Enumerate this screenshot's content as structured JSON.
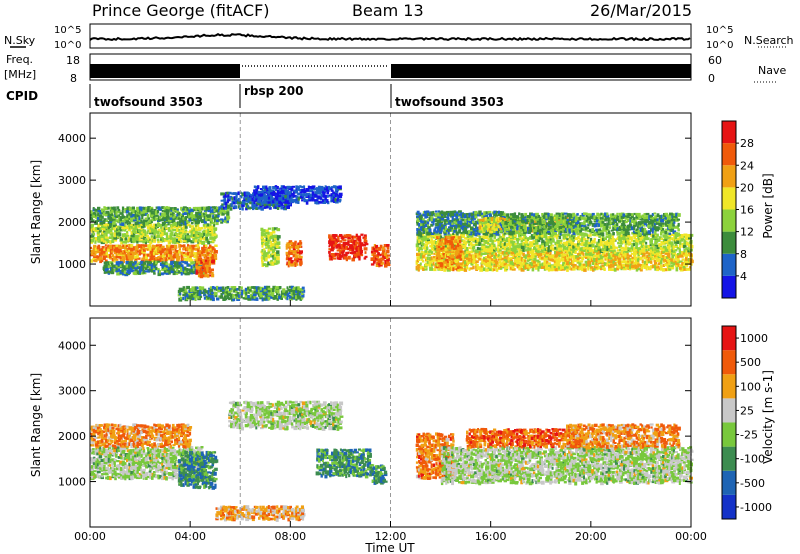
{
  "header": {
    "station": "Prince George (fitACF)",
    "beam": "Beam 13",
    "date": "26/Mar/2015"
  },
  "strip1": {
    "left_label": "N.Sky",
    "right_label": "N.Search",
    "left_ticks": [
      "10^5",
      "10^0"
    ],
    "right_ticks": [
      "10^5",
      "10^0"
    ]
  },
  "strip2": {
    "left_label_1": "Freq.",
    "left_label_2": "[MHz]",
    "right_label": "Nave",
    "left_ticks": [
      "18",
      "8"
    ],
    "right_ticks": [
      "60",
      "0"
    ]
  },
  "cpid": {
    "label": "CPID",
    "segments": [
      {
        "name": "twofsound 3503",
        "start": 0,
        "end": 6
      },
      {
        "name": "rbsp 200",
        "start": 6,
        "end": 12
      },
      {
        "name": "twofsound 3503",
        "start": 12,
        "end": 24
      }
    ]
  },
  "chart_data": [
    {
      "type": "heatmap",
      "name": "power",
      "ylabel": "Slant Range [km]",
      "yticks": [
        "1000",
        "2000",
        "3000",
        "4000"
      ],
      "ylim": [
        0,
        4600
      ],
      "xlim": [
        0,
        24
      ],
      "colorbar_label": "Power [dB]",
      "colorbar_ticks": [
        "4",
        "8",
        "12",
        "16",
        "20",
        "24",
        "28"
      ],
      "colors": [
        "#1414e6",
        "#1e64c8",
        "#3c8c3c",
        "#8cd23c",
        "#f0e628",
        "#f0a014",
        "#f05a0a",
        "#e61414"
      ],
      "regions": [
        {
          "t": [
            0.0,
            5.0
          ],
          "r": [
            1100,
            1500
          ],
          "v": 0.72
        },
        {
          "t": [
            0.0,
            5.0
          ],
          "r": [
            1550,
            2000
          ],
          "v": 0.45
        },
        {
          "t": [
            0.0,
            5.5
          ],
          "r": [
            2000,
            2400
          ],
          "v": 0.35
        },
        {
          "t": [
            0.5,
            4.5
          ],
          "r": [
            800,
            1100
          ],
          "v": 0.3
        },
        {
          "t": [
            4.2,
            4.9
          ],
          "r": [
            750,
            1200
          ],
          "v": 0.78
        },
        {
          "t": [
            5.2,
            8.0
          ],
          "r": [
            2350,
            2750
          ],
          "v": 0.18
        },
        {
          "t": [
            6.5,
            10.0
          ],
          "r": [
            2500,
            2900
          ],
          "v": 0.12
        },
        {
          "t": [
            6.8,
            7.5
          ],
          "r": [
            1000,
            1900
          ],
          "v": 0.48
        },
        {
          "t": [
            7.8,
            8.4
          ],
          "r": [
            1000,
            1600
          ],
          "v": 0.78
        },
        {
          "t": [
            9.5,
            11.0
          ],
          "r": [
            1150,
            1750
          ],
          "v": 0.9
        },
        {
          "t": [
            11.2,
            11.9
          ],
          "r": [
            1000,
            1500
          ],
          "v": 0.82
        },
        {
          "t": [
            13.0,
            24.0
          ],
          "r": [
            900,
            1350
          ],
          "v": 0.58
        },
        {
          "t": [
            13.0,
            24.0
          ],
          "r": [
            1350,
            1750
          ],
          "v": 0.48
        },
        {
          "t": [
            13.0,
            16.5
          ],
          "r": [
            1750,
            2300
          ],
          "v": 0.28
        },
        {
          "t": [
            15.5,
            19.5
          ],
          "r": [
            1800,
            2150
          ],
          "v": 0.55
        },
        {
          "t": [
            16.5,
            23.5
          ],
          "r": [
            1750,
            2250
          ],
          "v": 0.35
        },
        {
          "t": [
            13.8,
            14.8
          ],
          "r": [
            900,
            1700
          ],
          "v": 0.7
        },
        {
          "t": [
            3.5,
            8.5
          ],
          "r": [
            200,
            500
          ],
          "v": 0.32
        }
      ]
    },
    {
      "type": "heatmap",
      "name": "velocity",
      "ylabel": "Slant Range [km]",
      "yticks": [
        "1000",
        "2000",
        "3000",
        "4000"
      ],
      "ylim": [
        0,
        4600
      ],
      "xlim": [
        0,
        24
      ],
      "colorbar_label": "Velocity [m s-1]",
      "colorbar_ticks": [
        "1000",
        "500",
        "100",
        "25",
        "-25",
        "-100",
        "-500",
        "-1000"
      ],
      "colors": [
        "#1432c8",
        "#1e64b4",
        "#3c8c50",
        "#78c83c",
        "#c8c8c8",
        "#f0a014",
        "#f05a0a",
        "#e61414"
      ],
      "regions": [
        {
          "t": [
            0.0,
            4.5
          ],
          "r": [
            1100,
            1800
          ],
          "v": 0.5
        },
        {
          "t": [
            0.0,
            4.0
          ],
          "r": [
            1800,
            2300
          ],
          "v": 0.72
        },
        {
          "t": [
            3.5,
            5.0
          ],
          "r": [
            900,
            1700
          ],
          "v": 0.3
        },
        {
          "t": [
            5.5,
            10.0
          ],
          "r": [
            2200,
            2800
          ],
          "v": 0.5
        },
        {
          "t": [
            9.0,
            11.2
          ],
          "r": [
            1150,
            1750
          ],
          "v": 0.32
        },
        {
          "t": [
            11.2,
            11.8
          ],
          "r": [
            1000,
            1400
          ],
          "v": 0.3
        },
        {
          "t": [
            13.0,
            14.5
          ],
          "r": [
            1100,
            2100
          ],
          "v": 0.75
        },
        {
          "t": [
            14.0,
            24.0
          ],
          "r": [
            1000,
            1800
          ],
          "v": 0.5
        },
        {
          "t": [
            15.0,
            19.5
          ],
          "r": [
            1800,
            2200
          ],
          "v": 0.8
        },
        {
          "t": [
            19.0,
            23.5
          ],
          "r": [
            1800,
            2300
          ],
          "v": 0.72
        },
        {
          "t": [
            5.0,
            8.5
          ],
          "r": [
            200,
            500
          ],
          "v": 0.68
        }
      ]
    }
  ],
  "xaxis": {
    "label": "Time UT",
    "ticks": [
      "00:00",
      "04:00",
      "08:00",
      "12:00",
      "16:00",
      "20:00",
      "00:00"
    ]
  }
}
